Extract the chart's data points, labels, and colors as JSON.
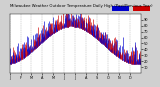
{
  "title": "Milwaukee Weather Outdoor Temperature Daily High (Past/Previous Year)",
  "background_color": "#d0d0d0",
  "plot_bg_color": "#ffffff",
  "bar_color_current": "#0000cc",
  "bar_color_previous": "#cc0000",
  "ylim_min": 0,
  "ylim_max": 100,
  "num_days": 365,
  "seed": 7,
  "legend_blue_label": "blue",
  "legend_red_label": "red",
  "y_ticks": [
    10,
    20,
    30,
    40,
    50,
    60,
    70,
    80,
    90
  ],
  "grid_color": "#aaaaaa",
  "title_fontsize": 3.5,
  "tick_fontsize": 2.5
}
